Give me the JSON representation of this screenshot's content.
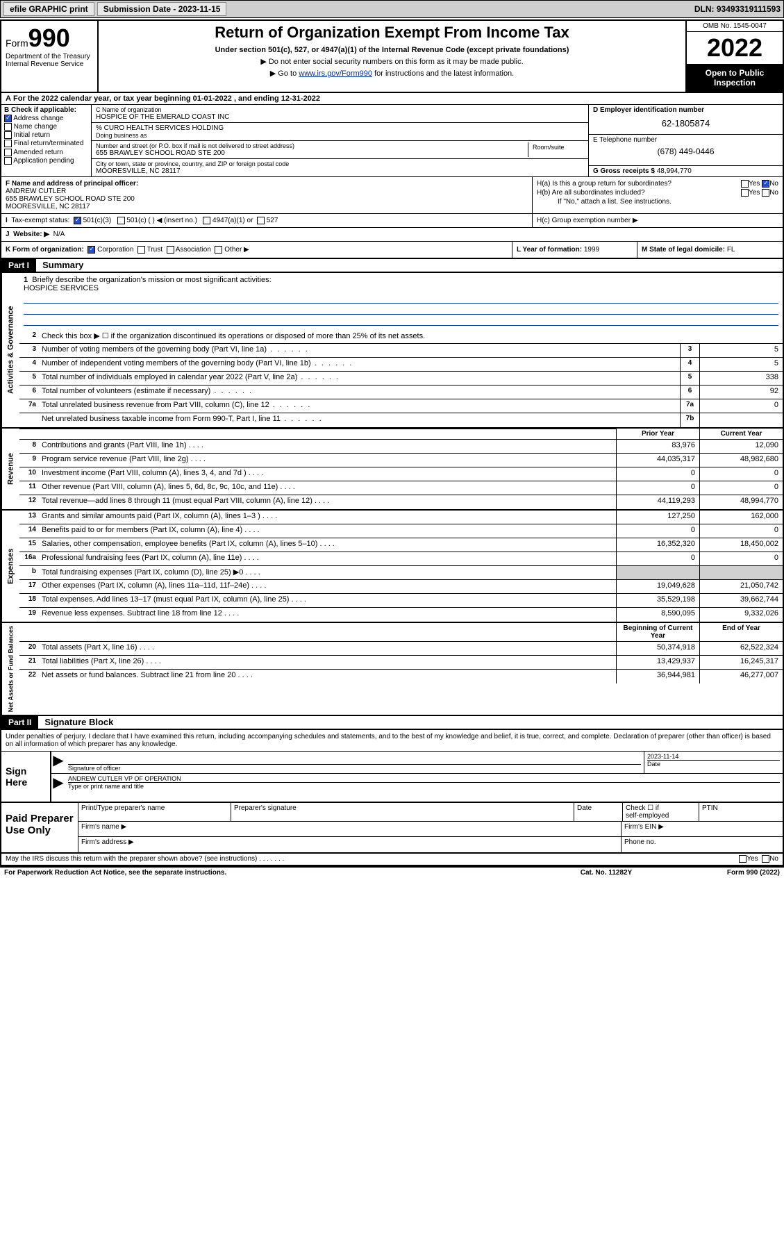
{
  "topbar": {
    "efile": "efile GRAPHIC print",
    "submission_label": "Submission Date - 2023-11-15",
    "dln": "DLN: 93493319111593"
  },
  "header": {
    "form_prefix": "Form",
    "form_num": "990",
    "dept": "Department of the Treasury",
    "irs": "Internal Revenue Service",
    "title": "Return of Organization Exempt From Income Tax",
    "subtitle": "Under section 501(c), 527, or 4947(a)(1) of the Internal Revenue Code (except private foundations)",
    "note1": "▶ Do not enter social security numbers on this form as it may be made public.",
    "note2_pre": "▶ Go to ",
    "note2_link": "www.irs.gov/Form990",
    "note2_post": " for instructions and the latest information.",
    "omb": "OMB No. 1545-0047",
    "year": "2022",
    "inspect1": "Open to Public",
    "inspect2": "Inspection"
  },
  "rowA": "For the 2022 calendar year, or tax year beginning 01-01-2022   , and ending 12-31-2022",
  "B": {
    "label": "B Check if applicable:",
    "items": [
      {
        "t": "Address change",
        "c": true
      },
      {
        "t": "Name change",
        "c": false
      },
      {
        "t": "Initial return",
        "c": false
      },
      {
        "t": "Final return/terminated",
        "c": false
      },
      {
        "t": "Amended return",
        "c": false
      },
      {
        "t": "Application pending",
        "c": false
      }
    ]
  },
  "C": {
    "name_lbl": "C Name of organization",
    "name": "HOSPICE OF THE EMERALD COAST INC",
    "care_lbl": "% CURO HEALTH SERVICES HOLDING",
    "dba_lbl": "Doing business as",
    "street_lbl": "Number and street (or P.O. box if mail is not delivered to street address)",
    "street": "655 BRAWLEY SCHOOL ROAD STE 200",
    "suite_lbl": "Room/suite",
    "city_lbl": "City or town, state or province, country, and ZIP or foreign postal code",
    "city": "MOORESVILLE, NC  28117"
  },
  "D": {
    "lbl": "D Employer identification number",
    "val": "62-1805874"
  },
  "E": {
    "lbl": "E Telephone number",
    "val": "(678) 449-0446"
  },
  "G": {
    "lbl": "G Gross receipts $",
    "val": "48,994,770"
  },
  "F": {
    "lbl": "F  Name and address of principal officer:",
    "name": "ANDREW CUTLER",
    "addr1": "655 BRAWLEY SCHOOL ROAD STE 200",
    "addr2": "MOORESVILLE, NC  28117"
  },
  "H": {
    "a": "H(a)  Is this a group return for subordinates?",
    "a_yes": "Yes",
    "a_no": "No",
    "b": "H(b)  Are all subordinates included?",
    "b_yes": "Yes",
    "b_no": "No",
    "b_note": "If \"No,\" attach a list. See instructions.",
    "c": "H(c)  Group exemption number ▶"
  },
  "I": {
    "lbl": "Tax-exempt status:",
    "opts": [
      "501(c)(3)",
      "501(c) (  ) ◀ (insert no.)",
      "4947(a)(1) or",
      "527"
    ]
  },
  "J": {
    "lbl": "Website: ▶",
    "val": "N/A"
  },
  "K": {
    "lbl": "K Form of organization:",
    "opts": [
      "Corporation",
      "Trust",
      "Association",
      "Other ▶"
    ]
  },
  "L": {
    "lbl": "L Year of formation:",
    "val": "1999"
  },
  "M": {
    "lbl": "M State of legal domicile:",
    "val": "FL"
  },
  "partI": {
    "hdr": "Part I",
    "title": "Summary"
  },
  "gov": {
    "side": "Activities & Governance",
    "l1": "Briefly describe the organization's mission or most significant activities:",
    "l1v": "HOSPICE SERVICES",
    "l2": "Check this box ▶ ☐  if the organization discontinued its operations or disposed of more than 25% of its net assets.",
    "rows": [
      {
        "n": "3",
        "t": "Number of voting members of the governing body (Part VI, line 1a)",
        "b": "3",
        "v": "5"
      },
      {
        "n": "4",
        "t": "Number of independent voting members of the governing body (Part VI, line 1b)",
        "b": "4",
        "v": "5"
      },
      {
        "n": "5",
        "t": "Total number of individuals employed in calendar year 2022 (Part V, line 2a)",
        "b": "5",
        "v": "338"
      },
      {
        "n": "6",
        "t": "Total number of volunteers (estimate if necessary)",
        "b": "6",
        "v": "92"
      },
      {
        "n": "7a",
        "t": "Total unrelated business revenue from Part VIII, column (C), line 12",
        "b": "7a",
        "v": "0"
      },
      {
        "n": "",
        "t": "Net unrelated business taxable income from Form 990-T, Part I, line 11",
        "b": "7b",
        "v": ""
      }
    ]
  },
  "cols": {
    "py": "Prior Year",
    "cy": "Current Year",
    "boc": "Beginning of Current Year",
    "eoy": "End of Year"
  },
  "rev": {
    "side": "Revenue",
    "rows": [
      {
        "n": "8",
        "t": "Contributions and grants (Part VIII, line 1h)",
        "py": "83,976",
        "cy": "12,090"
      },
      {
        "n": "9",
        "t": "Program service revenue (Part VIII, line 2g)",
        "py": "44,035,317",
        "cy": "48,982,680"
      },
      {
        "n": "10",
        "t": "Investment income (Part VIII, column (A), lines 3, 4, and 7d )",
        "py": "0",
        "cy": "0"
      },
      {
        "n": "11",
        "t": "Other revenue (Part VIII, column (A), lines 5, 6d, 8c, 9c, 10c, and 11e)",
        "py": "0",
        "cy": "0"
      },
      {
        "n": "12",
        "t": "Total revenue—add lines 8 through 11 (must equal Part VIII, column (A), line 12)",
        "py": "44,119,293",
        "cy": "48,994,770"
      }
    ]
  },
  "exp": {
    "side": "Expenses",
    "rows": [
      {
        "n": "13",
        "t": "Grants and similar amounts paid (Part IX, column (A), lines 1–3 )",
        "py": "127,250",
        "cy": "162,000"
      },
      {
        "n": "14",
        "t": "Benefits paid to or for members (Part IX, column (A), line 4)",
        "py": "0",
        "cy": "0"
      },
      {
        "n": "15",
        "t": "Salaries, other compensation, employee benefits (Part IX, column (A), lines 5–10)",
        "py": "16,352,320",
        "cy": "18,450,002"
      },
      {
        "n": "16a",
        "t": "Professional fundraising fees (Part IX, column (A), line 11e)",
        "py": "0",
        "cy": "0"
      },
      {
        "n": "b",
        "t": "Total fundraising expenses (Part IX, column (D), line 25) ▶0",
        "py": "shade",
        "cy": "shade"
      },
      {
        "n": "17",
        "t": "Other expenses (Part IX, column (A), lines 11a–11d, 11f–24e)",
        "py": "19,049,628",
        "cy": "21,050,742"
      },
      {
        "n": "18",
        "t": "Total expenses. Add lines 13–17 (must equal Part IX, column (A), line 25)",
        "py": "35,529,198",
        "cy": "39,662,744"
      },
      {
        "n": "19",
        "t": "Revenue less expenses. Subtract line 18 from line 12",
        "py": "8,590,095",
        "cy": "9,332,026"
      }
    ]
  },
  "net": {
    "side": "Net Assets or Fund Balances",
    "rows": [
      {
        "n": "20",
        "t": "Total assets (Part X, line 16)",
        "py": "50,374,918",
        "cy": "62,522,324"
      },
      {
        "n": "21",
        "t": "Total liabilities (Part X, line 26)",
        "py": "13,429,937",
        "cy": "16,245,317"
      },
      {
        "n": "22",
        "t": "Net assets or fund balances. Subtract line 21 from line 20",
        "py": "36,944,981",
        "cy": "46,277,007"
      }
    ]
  },
  "partII": {
    "hdr": "Part II",
    "title": "Signature Block"
  },
  "sig": {
    "intro": "Under penalties of perjury, I declare that I have examined this return, including accompanying schedules and statements, and to the best of my knowledge and belief, it is true, correct, and complete. Declaration of preparer (other than officer) is based on all information of which preparer has any knowledge.",
    "sign_here": "Sign Here",
    "sig_lbl": "Signature of officer",
    "date_lbl": "Date",
    "date_val": "2023-11-14",
    "name": "ANDREW CUTLER  VP OF OPERATION",
    "name_lbl": "Type or print name and title"
  },
  "paid": {
    "label": "Paid Preparer Use Only",
    "h1": "Print/Type preparer's name",
    "h2": "Preparer's signature",
    "h3": "Date",
    "h4a": "Check ☐ if",
    "h4b": "self-employed",
    "h5": "PTIN",
    "firm_name": "Firm's name    ▶",
    "firm_ein": "Firm's EIN ▶",
    "firm_addr": "Firm's address ▶",
    "phone": "Phone no."
  },
  "foot": {
    "q": "May the IRS discuss this return with the preparer shown above? (see instructions)",
    "yes": "Yes",
    "no": "No",
    "pra": "For Paperwork Reduction Act Notice, see the separate instructions.",
    "cat": "Cat. No. 11282Y",
    "form": "Form 990 (2022)"
  }
}
